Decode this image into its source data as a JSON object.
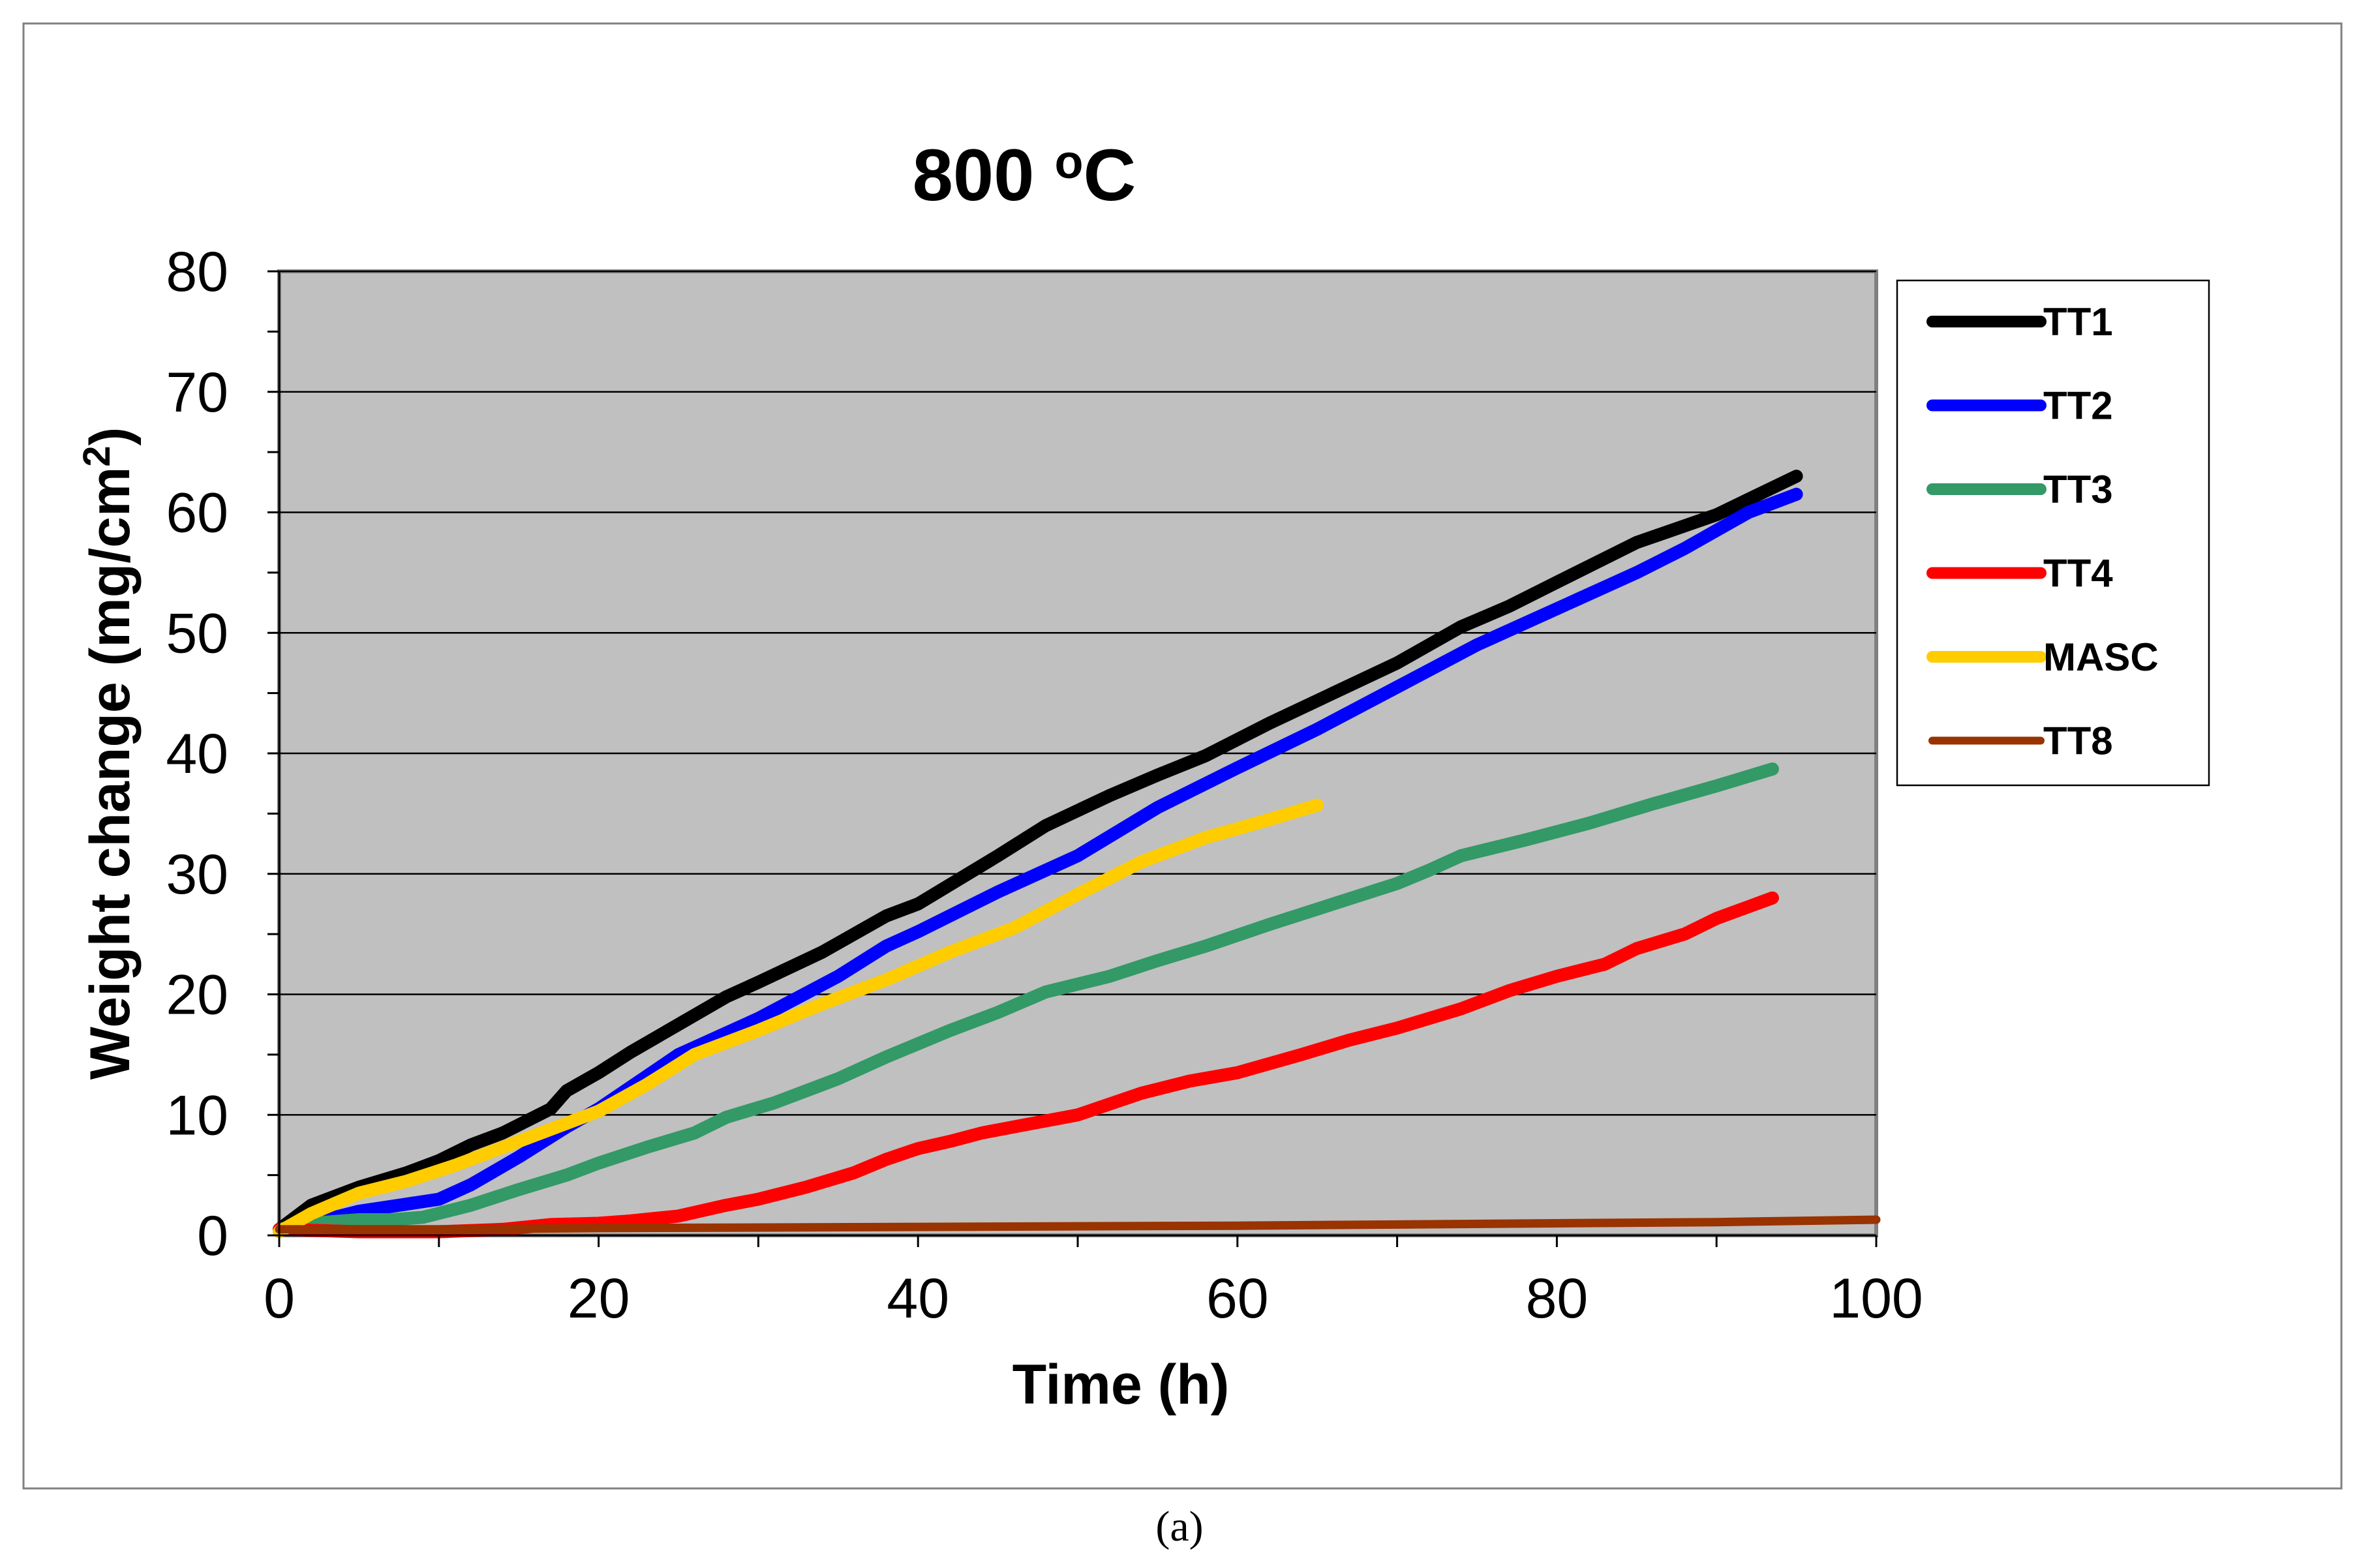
{
  "chart_data": {
    "type": "line",
    "title": "800 °C",
    "title_main": "800 ",
    "title_sup": "o",
    "title_unit": "C",
    "xlabel": "Time (h)",
    "ylabel_main": "Weight change (mg/cm",
    "ylabel_sup": "2",
    "ylabel_close": ")",
    "xlim": [
      0,
      100
    ],
    "ylim": [
      0,
      80
    ],
    "x_ticks": [
      0,
      20,
      40,
      60,
      80,
      100
    ],
    "x_minor_step": 10,
    "y_ticks": [
      0,
      10,
      20,
      30,
      40,
      50,
      60,
      70,
      80
    ],
    "y_minor_step": 5,
    "grid": "horizontal major",
    "legend_position": "right",
    "series": [
      {
        "name": "TT1",
        "color": "#000000",
        "x": [
          0,
          2,
          5,
          8,
          10,
          12,
          14,
          17,
          18,
          20,
          22,
          25,
          28,
          30,
          34,
          38,
          40,
          45,
          48,
          52,
          55,
          58,
          62,
          66,
          70,
          72,
          74,
          77,
          80,
          85,
          90,
          95
        ],
        "y": [
          0.5,
          2.5,
          4,
          5.2,
          6.2,
          7.5,
          8.5,
          10.5,
          12,
          13.5,
          15.2,
          17.5,
          19.8,
          21,
          23.5,
          26.5,
          27.5,
          31.5,
          34,
          36.5,
          38.2,
          39.8,
          42.5,
          45,
          47.5,
          49,
          50.5,
          52.2,
          54.2,
          57.5,
          59.8,
          63
        ]
      },
      {
        "name": "TT2",
        "color": "#0000ff",
        "x": [
          0,
          2,
          5,
          8,
          10,
          12,
          15,
          18,
          20,
          22,
          25,
          30,
          35,
          38,
          40,
          45,
          50,
          55,
          60,
          65,
          70,
          75,
          80,
          85,
          88,
          90,
          92,
          95
        ],
        "y": [
          0.5,
          1,
          2,
          2.6,
          3,
          4.2,
          6.5,
          9,
          10.5,
          12.3,
          15,
          18,
          21.5,
          24,
          25.2,
          28.5,
          31.5,
          35.5,
          38.8,
          42,
          45.5,
          49,
          52,
          55,
          57,
          58.5,
          60,
          61.5
        ]
      },
      {
        "name": "TT3",
        "color": "#339966",
        "x": [
          0,
          2,
          5,
          7,
          9,
          12,
          15,
          18,
          20,
          23,
          26,
          28,
          31,
          35,
          38,
          42,
          45,
          48,
          52,
          55,
          58,
          62,
          66,
          70,
          72,
          74,
          78,
          82,
          86,
          90,
          93.5
        ],
        "y": [
          0.5,
          1,
          1.3,
          1.3,
          1.5,
          2.5,
          3.8,
          5,
          6,
          7.3,
          8.5,
          9.8,
          11,
          13,
          14.8,
          17,
          18.5,
          20.2,
          21.5,
          22.8,
          24,
          25.8,
          27.5,
          29.2,
          30.3,
          31.5,
          32.8,
          34.2,
          35.8,
          37.3,
          38.7
        ]
      },
      {
        "name": "TT4",
        "color": "#ff0000",
        "x": [
          0,
          5,
          10,
          14,
          17,
          20,
          22,
          25,
          28,
          30,
          33,
          36,
          38,
          40,
          42,
          44,
          46,
          50,
          54,
          57,
          60,
          64,
          67,
          70,
          74,
          77,
          80,
          83,
          85,
          88,
          90,
          93.5
        ],
        "y": [
          0.5,
          0.3,
          0.3,
          0.5,
          0.9,
          1,
          1.2,
          1.6,
          2.5,
          3,
          4,
          5.2,
          6.3,
          7.2,
          7.8,
          8.5,
          9,
          10,
          11.8,
          12.8,
          13.5,
          15,
          16.2,
          17.2,
          18.8,
          20.3,
          21.5,
          22.5,
          23.8,
          25,
          26.3,
          28
        ]
      },
      {
        "name": "MASC",
        "color": "#ffcc00",
        "x": [
          0,
          2,
          5,
          8,
          11,
          14,
          17,
          20,
          23,
          26,
          30,
          34,
          38,
          42,
          46,
          50,
          54,
          58,
          62,
          65
        ],
        "y": [
          0.3,
          1.8,
          3.5,
          4.5,
          5.8,
          7.3,
          8.8,
          10.3,
          12.5,
          15,
          17,
          19.2,
          21.2,
          23.5,
          25.5,
          28.3,
          31,
          33,
          34.5,
          35.7
        ]
      },
      {
        "name": "TT8",
        "color": "#993300",
        "x": [
          0,
          10,
          20,
          40,
          60,
          80,
          90,
          100
        ],
        "y": [
          0.5,
          0.5,
          0.6,
          0.7,
          0.8,
          1,
          1.1,
          1.3
        ]
      }
    ]
  },
  "caption": "(a)"
}
